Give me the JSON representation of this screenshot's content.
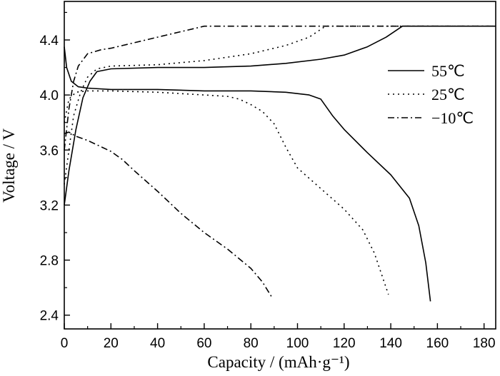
{
  "chart_data": {
    "type": "line",
    "xlabel": "Capacity / (mAh·g⁻¹)",
    "ylabel": "Voltage / V",
    "xlim": [
      0,
      185
    ],
    "ylim": [
      2.3,
      4.68
    ],
    "x_ticks": [
      "0",
      "20",
      "40",
      "60",
      "80",
      "100",
      "120",
      "140",
      "160",
      "180"
    ],
    "y_ticks": [
      "2.4",
      "2.8",
      "3.2",
      "3.6",
      "4.0",
      "4.4"
    ],
    "grid": false,
    "legend_position": "right",
    "series": [
      {
        "name": "55℃",
        "style": "solid",
        "charge": [
          [
            0,
            3.2
          ],
          [
            2,
            3.45
          ],
          [
            5,
            3.75
          ],
          [
            8,
            3.98
          ],
          [
            11,
            4.1
          ],
          [
            14,
            4.17
          ],
          [
            20,
            4.19
          ],
          [
            40,
            4.2
          ],
          [
            60,
            4.2
          ],
          [
            80,
            4.21
          ],
          [
            95,
            4.23
          ],
          [
            110,
            4.26
          ],
          [
            120,
            4.29
          ],
          [
            130,
            4.35
          ],
          [
            138,
            4.42
          ],
          [
            145,
            4.5
          ],
          [
            185,
            4.5
          ]
        ],
        "discharge": [
          [
            0,
            4.35
          ],
          [
            1,
            4.2
          ],
          [
            3,
            4.1
          ],
          [
            6,
            4.06
          ],
          [
            10,
            4.05
          ],
          [
            20,
            4.04
          ],
          [
            40,
            4.04
          ],
          [
            60,
            4.03
          ],
          [
            80,
            4.03
          ],
          [
            95,
            4.02
          ],
          [
            105,
            4.0
          ],
          [
            110,
            3.97
          ],
          [
            115,
            3.85
          ],
          [
            120,
            3.75
          ],
          [
            130,
            3.58
          ],
          [
            140,
            3.42
          ],
          [
            148,
            3.25
          ],
          [
            152,
            3.05
          ],
          [
            155,
            2.78
          ],
          [
            157,
            2.5
          ]
        ]
      },
      {
        "name": "25℃",
        "style": "dotted",
        "charge": [
          [
            0,
            3.35
          ],
          [
            2,
            3.6
          ],
          [
            4,
            3.85
          ],
          [
            7,
            4.02
          ],
          [
            10,
            4.13
          ],
          [
            14,
            4.19
          ],
          [
            20,
            4.21
          ],
          [
            40,
            4.22
          ],
          [
            60,
            4.25
          ],
          [
            80,
            4.3
          ],
          [
            95,
            4.36
          ],
          [
            105,
            4.42
          ],
          [
            112,
            4.5
          ],
          [
            185,
            4.5
          ]
        ],
        "discharge": [
          [
            0,
            3.8
          ],
          [
            2,
            3.97
          ],
          [
            5,
            4.02
          ],
          [
            10,
            4.03
          ],
          [
            20,
            4.03
          ],
          [
            40,
            4.02
          ],
          [
            60,
            4.0
          ],
          [
            70,
            3.99
          ],
          [
            75,
            3.97
          ],
          [
            80,
            3.93
          ],
          [
            85,
            3.88
          ],
          [
            90,
            3.79
          ],
          [
            95,
            3.62
          ],
          [
            100,
            3.47
          ],
          [
            110,
            3.32
          ],
          [
            120,
            3.17
          ],
          [
            128,
            3.02
          ],
          [
            133,
            2.85
          ],
          [
            136,
            2.7
          ],
          [
            139,
            2.55
          ]
        ]
      },
      {
        "name": "−10℃",
        "style": "dashdot",
        "charge": [
          [
            0,
            3.6
          ],
          [
            2,
            3.9
          ],
          [
            4,
            4.1
          ],
          [
            6,
            4.21
          ],
          [
            10,
            4.3
          ],
          [
            16,
            4.33
          ],
          [
            20,
            4.34
          ],
          [
            30,
            4.38
          ],
          [
            40,
            4.42
          ],
          [
            50,
            4.46
          ],
          [
            60,
            4.5
          ],
          [
            185,
            4.5
          ]
        ],
        "discharge": [
          [
            0,
            3.72
          ],
          [
            2,
            3.73
          ],
          [
            5,
            3.7
          ],
          [
            10,
            3.67
          ],
          [
            20,
            3.59
          ],
          [
            25,
            3.53
          ],
          [
            30,
            3.45
          ],
          [
            40,
            3.3
          ],
          [
            50,
            3.14
          ],
          [
            60,
            3.0
          ],
          [
            70,
            2.88
          ],
          [
            80,
            2.74
          ],
          [
            85,
            2.64
          ],
          [
            89,
            2.53
          ]
        ]
      }
    ]
  },
  "colors": {
    "line": "#000000",
    "background": "#ffffff"
  }
}
